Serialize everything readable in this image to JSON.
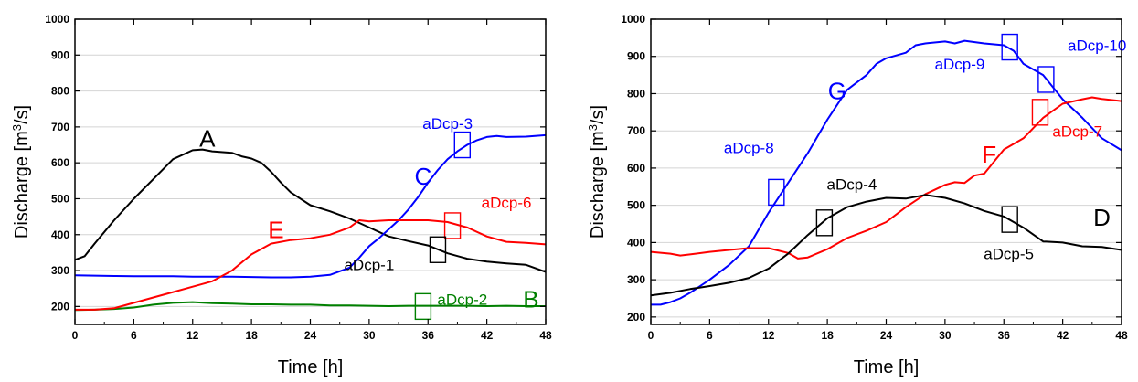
{
  "chart_data": [
    {
      "type": "line",
      "xlabel": "Time [h]",
      "ylabel": "Discharge [m",
      "ylabel_sup": "3",
      "ylabel_tail": "/s]",
      "xlim": [
        0,
        48
      ],
      "ylim": [
        150,
        1000
      ],
      "xticks": [
        0,
        6,
        12,
        18,
        24,
        30,
        36,
        42,
        48
      ],
      "yticks": [
        200,
        300,
        400,
        500,
        600,
        700,
        800,
        900,
        1000
      ],
      "grid": true,
      "series": [
        {
          "name": "A",
          "color": "#000000",
          "x": [
            0,
            1,
            2,
            4,
            6,
            8,
            10,
            12,
            13,
            14,
            16,
            17,
            18,
            19,
            20,
            21,
            22,
            24,
            26,
            28,
            30,
            32,
            34,
            36,
            38,
            40,
            42,
            44,
            46,
            48
          ],
          "y": [
            330,
            340,
            375,
            440,
            500,
            555,
            610,
            635,
            637,
            632,
            628,
            618,
            612,
            600,
            575,
            545,
            518,
            482,
            465,
            445,
            420,
            395,
            382,
            370,
            348,
            333,
            325,
            320,
            316,
            296
          ]
        },
        {
          "name": "B",
          "color": "#008000",
          "x": [
            0,
            2,
            4,
            6,
            8,
            10,
            12,
            14,
            16,
            18,
            20,
            22,
            24,
            26,
            28,
            30,
            32,
            34,
            36,
            38,
            40,
            42,
            44,
            46,
            48
          ],
          "y": [
            190,
            191,
            193,
            197,
            205,
            210,
            212,
            209,
            208,
            206,
            206,
            205,
            205,
            203,
            203,
            202,
            201,
            202,
            202,
            202,
            202,
            201,
            202,
            201,
            201
          ]
        },
        {
          "name": "C",
          "color": "#0000ff",
          "x": [
            0,
            2,
            4,
            6,
            8,
            10,
            12,
            14,
            16,
            18,
            20,
            22,
            24,
            26,
            28,
            29,
            30,
            31,
            32,
            33,
            34,
            35,
            36,
            37,
            38,
            39,
            40,
            41,
            42,
            43,
            44,
            46,
            48
          ],
          "y": [
            287,
            286,
            285,
            284,
            284,
            284,
            283,
            283,
            283,
            282,
            281,
            281,
            283,
            288,
            308,
            336,
            368,
            390,
            415,
            440,
            470,
            505,
            545,
            580,
            610,
            632,
            650,
            663,
            672,
            675,
            672,
            673,
            677
          ]
        },
        {
          "name": "E",
          "color": "#ff0000",
          "x": [
            0,
            2,
            4,
            6,
            8,
            10,
            12,
            14,
            16,
            18,
            20,
            22,
            24,
            26,
            28,
            29,
            30,
            32,
            34,
            36,
            38,
            40,
            42,
            44,
            46,
            48
          ],
          "y": [
            191,
            191,
            195,
            210,
            225,
            240,
            255,
            270,
            300,
            345,
            375,
            385,
            390,
            400,
            420,
            440,
            437,
            440,
            440,
            440,
            435,
            420,
            395,
            380,
            377,
            373
          ]
        }
      ],
      "labels": {
        "curves": [
          {
            "text": "A",
            "color": "#000000",
            "x": 13.5,
            "y": 645
          },
          {
            "text": "B",
            "color": "#008000",
            "x": 46.5,
            "y": 197
          },
          {
            "text": "C",
            "color": "#0000ff",
            "x": 35.5,
            "y": 540
          },
          {
            "text": "E",
            "color": "#ff0000",
            "x": 20.5,
            "y": 390
          }
        ],
        "gauges": [
          {
            "text": "aDcp-3",
            "color": "#0000ff",
            "x": 38,
            "y": 695
          },
          {
            "text": "aDcp-6",
            "color": "#ff0000",
            "x": 44,
            "y": 474
          },
          {
            "text": "aDcp-1",
            "color": "#000000",
            "x": 30,
            "y": 302
          },
          {
            "text": "aDcp-2",
            "color": "#008000",
            "x": 39.5,
            "y": 205
          }
        ]
      },
      "markers": [
        {
          "color": "#0000ff",
          "x": 39.5,
          "y": 650
        },
        {
          "color": "#ff0000",
          "x": 38.5,
          "y": 425
        },
        {
          "color": "#000000",
          "x": 37,
          "y": 358
        },
        {
          "color": "#008000",
          "x": 35.5,
          "y": 200
        }
      ]
    },
    {
      "type": "line",
      "xlabel": "Time [h]",
      "ylabel": "Discharge [m",
      "ylabel_sup": "3",
      "ylabel_tail": "/s]",
      "xlim": [
        0,
        48
      ],
      "ylim": [
        180,
        1000
      ],
      "xticks": [
        0,
        6,
        12,
        18,
        24,
        30,
        36,
        42,
        48
      ],
      "yticks": [
        200,
        300,
        400,
        500,
        600,
        700,
        800,
        900,
        1000
      ],
      "grid": true,
      "series": [
        {
          "name": "G",
          "color": "#0000ff",
          "x": [
            0,
            1,
            2,
            3,
            4,
            6,
            8,
            10,
            12,
            14,
            16,
            18,
            20,
            22,
            23,
            24,
            26,
            27,
            28,
            30,
            31,
            32,
            34,
            36,
            37,
            38,
            40,
            42,
            44,
            46,
            48
          ],
          "y": [
            233,
            233,
            240,
            250,
            265,
            300,
            340,
            390,
            480,
            560,
            640,
            730,
            810,
            850,
            880,
            895,
            910,
            930,
            935,
            940,
            935,
            942,
            935,
            930,
            915,
            880,
            850,
            785,
            735,
            680,
            648
          ]
        },
        {
          "name": "F",
          "color": "#ff0000",
          "x": [
            0,
            2,
            3,
            4,
            6,
            8,
            10,
            12,
            14,
            15,
            16,
            18,
            20,
            22,
            24,
            26,
            28,
            30,
            31,
            32,
            33,
            34,
            36,
            38,
            40,
            42,
            44,
            45,
            46,
            48
          ],
          "y": [
            375,
            370,
            365,
            368,
            375,
            380,
            385,
            385,
            372,
            357,
            360,
            382,
            412,
            432,
            455,
            495,
            530,
            555,
            562,
            560,
            580,
            585,
            650,
            680,
            735,
            773,
            785,
            790,
            786,
            780
          ]
        },
        {
          "name": "D",
          "color": "#000000",
          "x": [
            0,
            2,
            4,
            6,
            8,
            10,
            12,
            14,
            16,
            18,
            20,
            22,
            24,
            26,
            28,
            30,
            32,
            34,
            36,
            38,
            40,
            42,
            44,
            46,
            48
          ],
          "y": [
            258,
            265,
            275,
            283,
            292,
            305,
            330,
            370,
            420,
            465,
            495,
            510,
            520,
            518,
            528,
            520,
            505,
            485,
            470,
            440,
            403,
            400,
            390,
            388,
            380
          ]
        }
      ],
      "labels": {
        "curves": [
          {
            "text": "G",
            "color": "#0000ff",
            "x": 19,
            "y": 785
          },
          {
            "text": "F",
            "color": "#ff0000",
            "x": 34.5,
            "y": 615
          },
          {
            "text": "D",
            "color": "#000000",
            "x": 46,
            "y": 445
          }
        ],
        "gauges": [
          {
            "text": "aDcp-8",
            "color": "#0000ff",
            "x": 10,
            "y": 640
          },
          {
            "text": "aDcp-4",
            "color": "#000000",
            "x": 20.5,
            "y": 542
          },
          {
            "text": "aDcp-9",
            "color": "#0000ff",
            "x": 31.5,
            "y": 865
          },
          {
            "text": "aDcp-10",
            "color": "#0000ff",
            "x": 45.5,
            "y": 915
          },
          {
            "text": "aDcp-7",
            "color": "#ff0000",
            "x": 43.5,
            "y": 685
          },
          {
            "text": "aDcp-5",
            "color": "#000000",
            "x": 36.5,
            "y": 355
          }
        ]
      },
      "markers": [
        {
          "color": "#0000ff",
          "x": 12.8,
          "y": 535
        },
        {
          "color": "#000000",
          "x": 17.7,
          "y": 453
        },
        {
          "color": "#0000ff",
          "x": 36.6,
          "y": 925
        },
        {
          "color": "#0000ff",
          "x": 40.3,
          "y": 838
        },
        {
          "color": "#ff0000",
          "x": 39.7,
          "y": 750
        },
        {
          "color": "#000000",
          "x": 36.6,
          "y": 462
        }
      ]
    }
  ]
}
